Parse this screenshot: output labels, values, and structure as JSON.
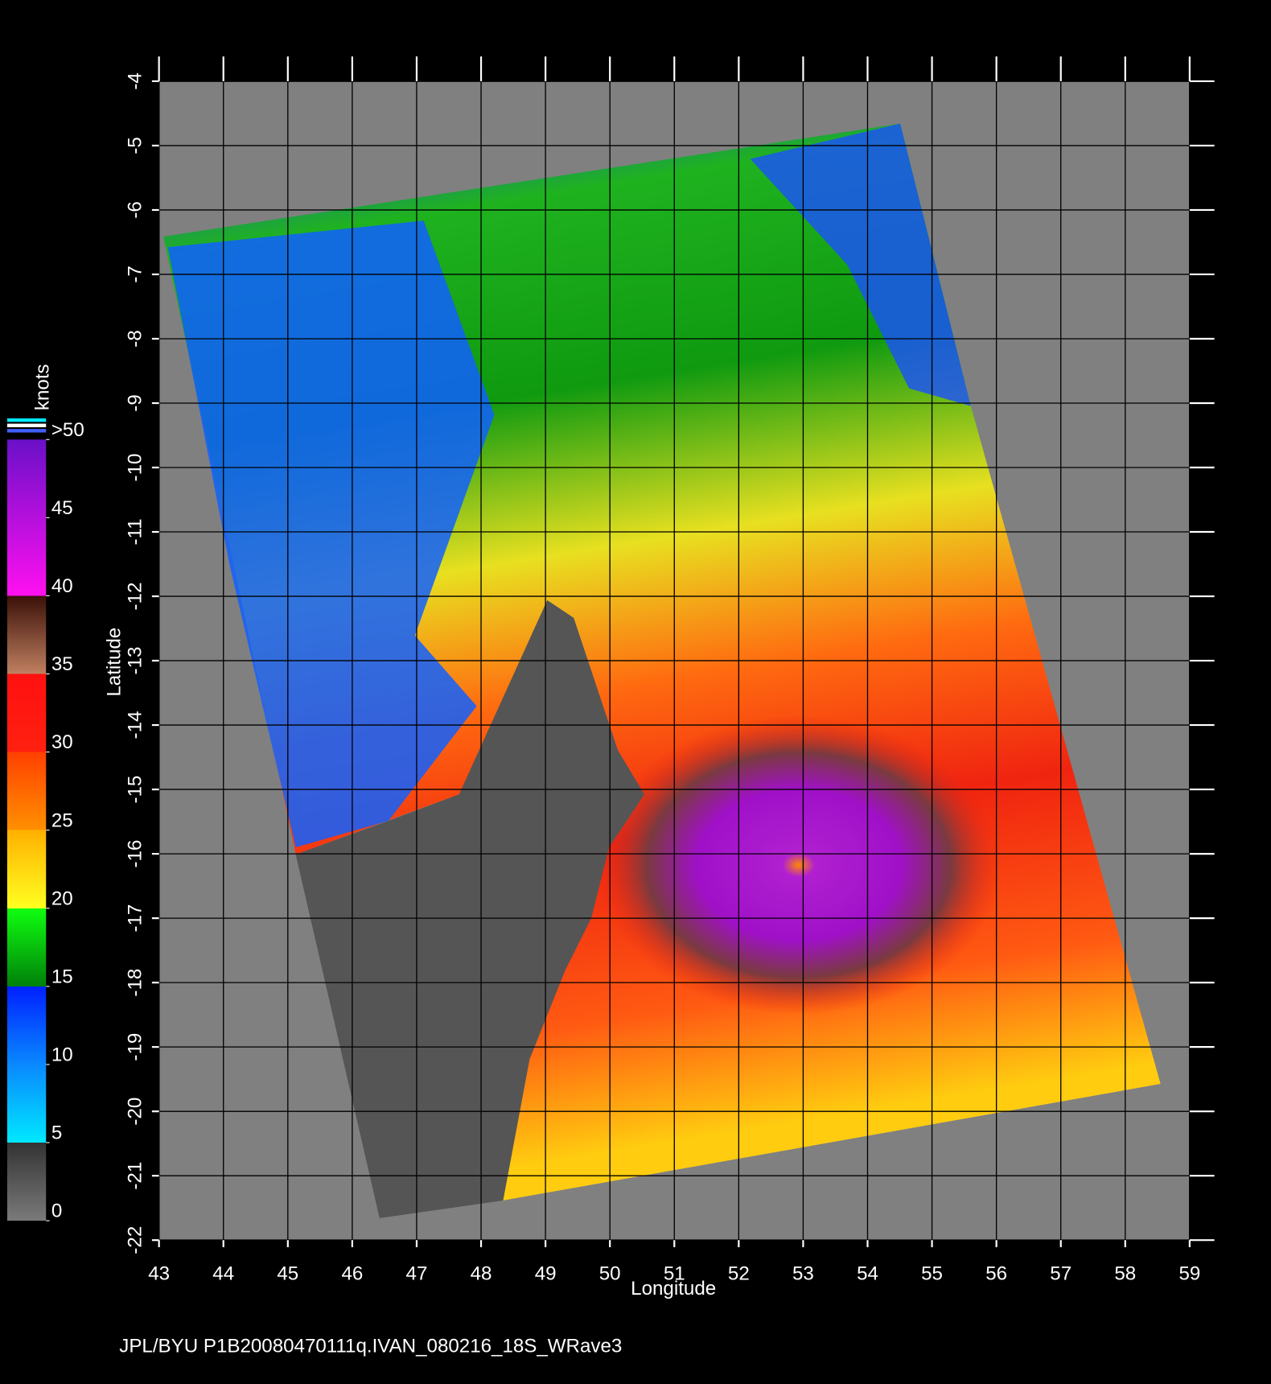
{
  "map": {
    "footer": "JPL/BYU  P1B20080470111q.IVAN_080216_18S_WRave3",
    "xlabel": "Longitude",
    "ylabel": "Latitude",
    "xlim": [
      43,
      59
    ],
    "ylim": [
      -22,
      -4
    ],
    "xticks": [
      43,
      44,
      45,
      46,
      47,
      48,
      49,
      50,
      51,
      52,
      53,
      54,
      55,
      56,
      57,
      58,
      59
    ],
    "yticks": [
      -4,
      -5,
      -6,
      -7,
      -8,
      -9,
      -10,
      -11,
      -12,
      -13,
      -14,
      -15,
      -16,
      -17,
      -18,
      -19,
      -20,
      -21,
      -22
    ],
    "colorbar": {
      "label": "knots",
      "lim": [
        0,
        50
      ],
      "ticks": [
        0,
        5,
        10,
        15,
        20,
        25,
        30,
        35,
        40,
        45,
        {
          "value": 50,
          "label": ">50"
        }
      ]
    }
  }
}
